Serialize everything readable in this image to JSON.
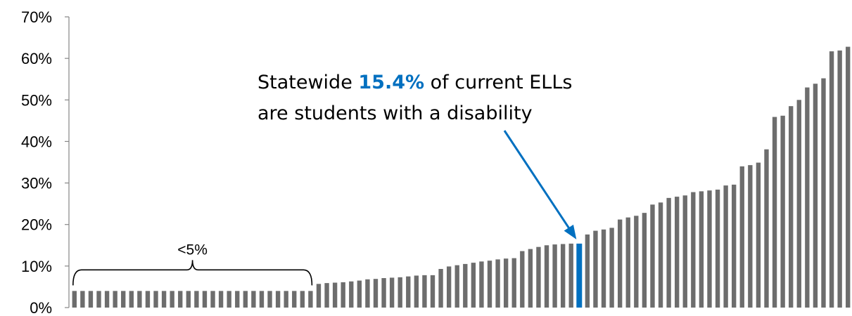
{
  "chart_data": {
    "type": "bar",
    "y_ticks": [
      "0%",
      "10%",
      "20%",
      "30%",
      "40%",
      "50%",
      "60%",
      "70%"
    ],
    "ylim": [
      0,
      70
    ],
    "grid": false,
    "bar_color": "#6d6d6d",
    "highlight_color": "#0070c0",
    "highlight_index": 62,
    "values": [
      4,
      4,
      4,
      4,
      4,
      4,
      4,
      4,
      4,
      4,
      4,
      4,
      4,
      4,
      4,
      4,
      4,
      4,
      4,
      4,
      4,
      4,
      4,
      4,
      4,
      4,
      4,
      4,
      4,
      4,
      5.7,
      5.9,
      6.0,
      6.1,
      6.3,
      6.5,
      6.8,
      6.9,
      7.1,
      7.2,
      7.3,
      7.5,
      7.7,
      7.8,
      7.8,
      9.3,
      9.9,
      10.2,
      10.5,
      10.8,
      11.1,
      11.3,
      11.6,
      11.8,
      11.9,
      13.6,
      14.1,
      14.6,
      15.0,
      15.2,
      15.3,
      15.4,
      15.4,
      17.6,
      18.5,
      18.8,
      19.2,
      21.2,
      21.7,
      22.1,
      22.8,
      24.8,
      25.3,
      26.4,
      26.7,
      27.0,
      27.8,
      28.0,
      28.2,
      28.4,
      29.4,
      29.6,
      34.0,
      34.3,
      34.9,
      38.1,
      45.9,
      46.2,
      48.5,
      50.0,
      53.0,
      53.9,
      55.2,
      61.7,
      61.9,
      62.8
    ],
    "annotation": {
      "line1_before": "Statewide ",
      "line1_highlight": "15.4%",
      "line1_after": " of current ELLs",
      "line2": "are students with a disability"
    },
    "brace_label": "<5%"
  }
}
